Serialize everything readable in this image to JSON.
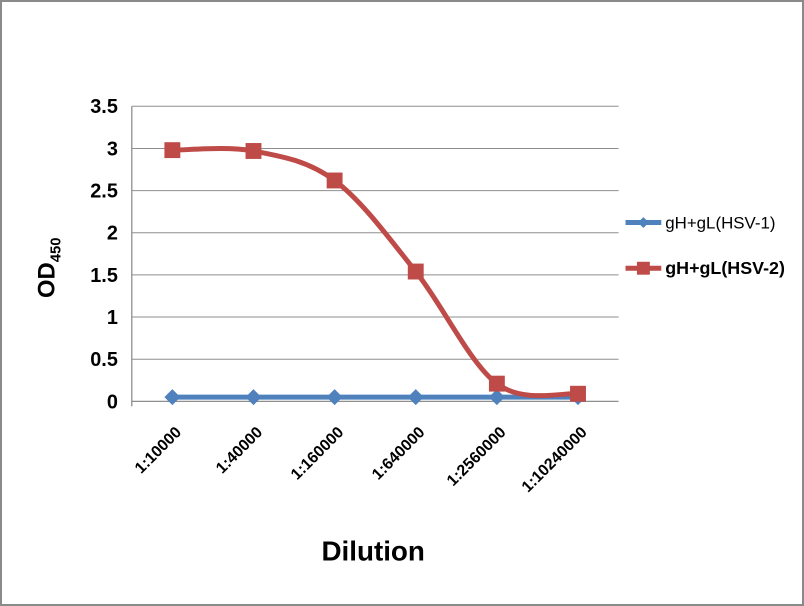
{
  "figure": {
    "background_color": "#ffffff",
    "frame_border_color": "#8a8a8a"
  },
  "chart_data": {
    "type": "line",
    "title": "",
    "xlabel": "Dilution",
    "ylabel": "OD",
    "ylabel_subscript": "450",
    "categories": [
      "1:10000",
      "1:40000",
      "1:160000",
      "1:640000",
      "1:2560000",
      "1:10240000"
    ],
    "series": [
      {
        "name": "gH+gL(HSV-1)",
        "color": "#4F81BD",
        "marker": "diamond",
        "legend_bold": false,
        "values": [
          0.05,
          0.05,
          0.05,
          0.05,
          0.05,
          0.05
        ]
      },
      {
        "name": "gH+gL(HSV-2)",
        "color": "#BE4B48",
        "marker": "square",
        "legend_bold": true,
        "values": [
          2.98,
          2.97,
          2.62,
          1.54,
          0.21,
          0.09
        ]
      }
    ],
    "ylim": [
      0,
      3.5
    ],
    "ytick_step": 0.5,
    "ytick_labels": [
      "0",
      "0.5",
      "1",
      "1.5",
      "2",
      "2.5",
      "3",
      "3.5"
    ],
    "grid": "horizontal-only",
    "legend_position": "right",
    "smooth_lines": true,
    "axis_color": "#8e8e8e",
    "grid_color": "#8e8e8e",
    "text_color": "#000000"
  }
}
